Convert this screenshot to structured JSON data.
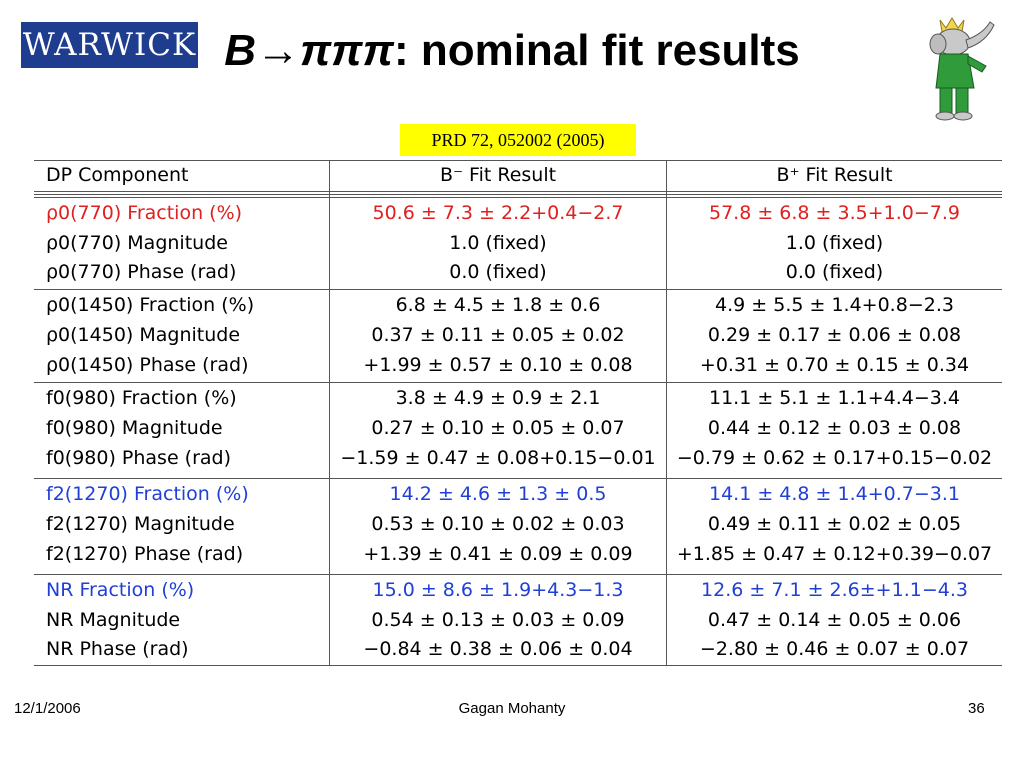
{
  "header": {
    "logo_text": "WARWICK",
    "title_symbol": "B→πππ",
    "title_rest": ": nominal fit results",
    "reference": "PRD 72, 052002 (2005)",
    "mascot_icon": "elephant-mascot-icon"
  },
  "colors": {
    "red": "#e0201e",
    "blue": "#1f3fd6",
    "logo_bg": "#1e3d8f",
    "ref_bg": "#ffff00"
  },
  "table": {
    "headers": [
      "DP Component",
      "B⁻ Fit Result",
      "B⁺ Fit Result"
    ],
    "rows": [
      {
        "label": "ρ0(770) Fraction (%)",
        "bminus": "50.6 ± 7.3 ± 2.2+0.4−2.7",
        "bplus": "57.8 ± 6.8 ± 3.5+1.0−7.9",
        "color": "red"
      },
      {
        "label": "ρ0(770) Magnitude",
        "bminus": "1.0 (fixed)",
        "bplus": "1.0 (fixed)",
        "color": ""
      },
      {
        "label": "ρ0(770) Phase (rad)",
        "bminus": "0.0 (fixed)",
        "bplus": "0.0 (fixed)",
        "color": ""
      },
      {
        "label": "ρ0(1450) Fraction (%)",
        "bminus": "6.8 ± 4.5 ± 1.8 ± 0.6",
        "bplus": "4.9 ± 5.5 ± 1.4+0.8−2.3",
        "color": ""
      },
      {
        "label": "ρ0(1450) Magnitude",
        "bminus": "0.37 ± 0.11 ± 0.05 ± 0.02",
        "bplus": "0.29 ± 0.17 ± 0.06 ± 0.08",
        "color": ""
      },
      {
        "label": "ρ0(1450) Phase (rad)",
        "bminus": "+1.99 ± 0.57 ± 0.10 ± 0.08",
        "bplus": "+0.31 ± 0.70 ± 0.15 ± 0.34",
        "color": ""
      },
      {
        "label": "f0(980) Fraction (%)",
        "bminus": "3.8 ± 4.9 ± 0.9 ± 2.1",
        "bplus": "11.1 ± 5.1 ± 1.1+4.4−3.4",
        "color": ""
      },
      {
        "label": "f0(980) Magnitude",
        "bminus": "0.27 ± 0.10 ± 0.05 ± 0.07",
        "bplus": "0.44 ± 0.12 ± 0.03 ± 0.08",
        "color": ""
      },
      {
        "label": "f0(980) Phase (rad)",
        "bminus": "−1.59 ± 0.47 ± 0.08+0.15−0.01",
        "bplus": "−0.79 ± 0.62 ± 0.17+0.15−0.02",
        "color": ""
      },
      {
        "label": "f2(1270) Fraction (%)",
        "bminus": "14.2 ± 4.6 ± 1.3 ± 0.5",
        "bplus": "14.1 ± 4.8 ± 1.4+0.7−3.1",
        "color": "blue"
      },
      {
        "label": "f2(1270) Magnitude",
        "bminus": "0.53 ± 0.10 ± 0.02 ± 0.03",
        "bplus": "0.49 ± 0.11 ± 0.02 ± 0.05",
        "color": ""
      },
      {
        "label": "f2(1270) Phase (rad)",
        "bminus": "+1.39 ± 0.41 ± 0.09 ± 0.09",
        "bplus": "+1.85 ± 0.47 ± 0.12+0.39−0.07",
        "color": ""
      },
      {
        "label": "NR Fraction (%)",
        "bminus": "15.0 ± 8.6 ± 1.9+4.3−1.3",
        "bplus": "12.6 ± 7.1 ± 2.6±+1.1−4.3",
        "color": "blue"
      },
      {
        "label": "NR Magnitude",
        "bminus": "0.54 ± 0.13 ± 0.03 ± 0.09",
        "bplus": "0.47 ± 0.14 ± 0.05 ± 0.06",
        "color": ""
      },
      {
        "label": "NR Phase (rad)",
        "bminus": "−0.84 ± 0.38 ± 0.06 ± 0.04",
        "bplus": "−2.80 ± 0.46 ± 0.07 ± 0.07",
        "color": ""
      }
    ]
  },
  "footer": {
    "date": "12/1/2006",
    "author": "Gagan Mohanty",
    "page": "36"
  }
}
